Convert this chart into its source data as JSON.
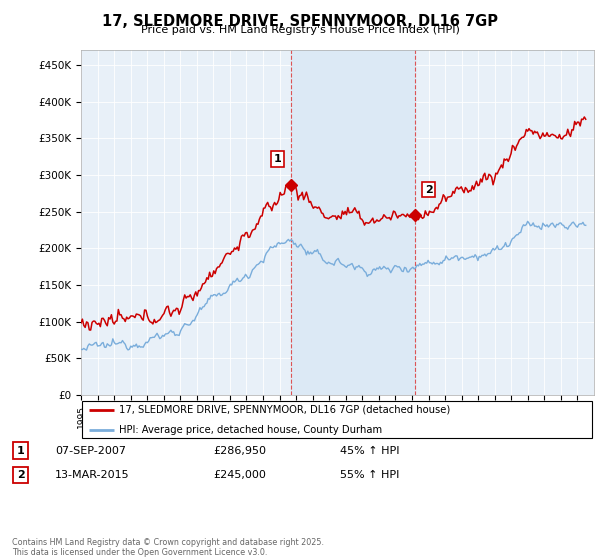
{
  "title": "17, SLEDMORE DRIVE, SPENNYMOOR, DL16 7GP",
  "subtitle": "Price paid vs. HM Land Registry's House Price Index (HPI)",
  "ylabel_ticks": [
    "£0",
    "£50K",
    "£100K",
    "£150K",
    "£200K",
    "£250K",
    "£300K",
    "£350K",
    "£400K",
    "£450K"
  ],
  "ytick_values": [
    0,
    50000,
    100000,
    150000,
    200000,
    250000,
    300000,
    350000,
    400000,
    450000
  ],
  "ylim": [
    0,
    470000
  ],
  "xlim_start": 1995,
  "xlim_end": 2026,
  "sale1_date": 2007.68,
  "sale1_price": 286950,
  "sale2_date": 2015.2,
  "sale2_price": 245000,
  "red_color": "#cc0000",
  "blue_color": "#7aaddb",
  "shade_color": "#dce9f5",
  "grid_color": "#cccccc",
  "legend1_text": "17, SLEDMORE DRIVE, SPENNYMOOR, DL16 7GP (detached house)",
  "legend2_text": "HPI: Average price, detached house, County Durham",
  "footnote": "Contains HM Land Registry data © Crown copyright and database right 2025.\nThis data is licensed under the Open Government Licence v3.0."
}
